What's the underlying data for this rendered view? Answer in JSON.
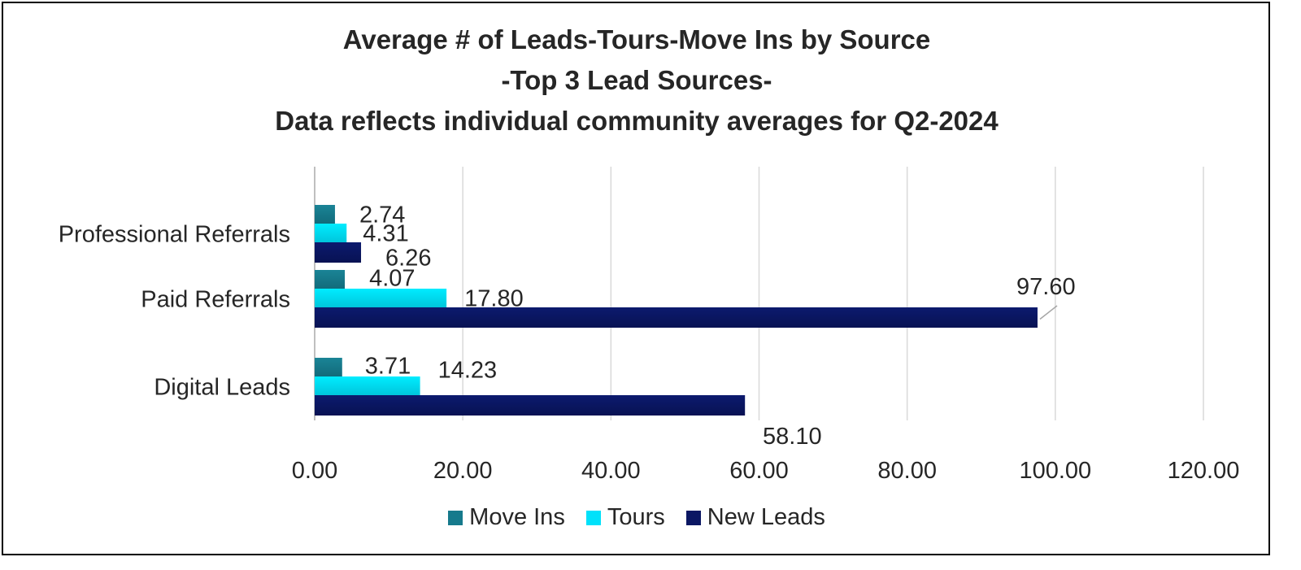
{
  "chart_data": {
    "type": "bar",
    "orientation": "horizontal",
    "title": [
      "Average # of Leads-Tours-Move Ins by Source",
      "-Top 3 Lead Sources-",
      "Data reflects individual community averages for Q2-2024"
    ],
    "categories": [
      "Professional Referrals",
      "Paid Referrals",
      "Digital Leads"
    ],
    "series": [
      {
        "name": "Move Ins",
        "color": "#167A8C",
        "values": [
          2.74,
          4.07,
          3.71
        ]
      },
      {
        "name": "Tours",
        "color": "#00E1FA",
        "values": [
          4.31,
          17.8,
          14.23
        ]
      },
      {
        "name": "New Leads",
        "color": "#0B1763",
        "values": [
          6.26,
          97.6,
          58.1
        ]
      }
    ],
    "xlim": [
      0,
      120
    ],
    "xticks": [
      "0.00",
      "20.00",
      "40.00",
      "60.00",
      "80.00",
      "100.00",
      "120.00"
    ],
    "grid": true,
    "legend": "bottom",
    "xlabel": "",
    "ylabel": ""
  }
}
